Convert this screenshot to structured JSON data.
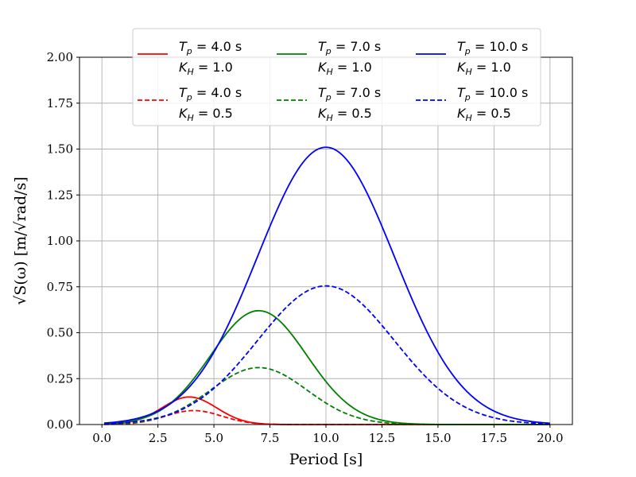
{
  "chart_data": {
    "type": "line",
    "xlabel": "Period [s]",
    "ylabel": "√S(ω)  [m/√rad/s]",
    "xlim": [
      -1.0,
      21.0
    ],
    "ylim": [
      0.0,
      2.0
    ],
    "x_ticks": [
      "0.0",
      "2.5",
      "5.0",
      "7.5",
      "10.0",
      "12.5",
      "15.0",
      "17.5",
      "20.0"
    ],
    "y_ticks": [
      "0.00",
      "0.25",
      "0.50",
      "0.75",
      "1.00",
      "1.25",
      "1.50",
      "1.75",
      "2.00"
    ],
    "grid": true,
    "legend_position": "top-center",
    "series": [
      {
        "name": "Tp = 4.0 s, KH = 1.0",
        "line1": "T_p = 4.0 s",
        "line2": "K_H = 1.0",
        "color": "#ff0000",
        "dash": "solid",
        "peak_x": 3.9,
        "peak_y": 0.15,
        "width": 1.22
      },
      {
        "name": "Tp = 4.0 s, KH = 0.5",
        "line1": "T_p = 4.0 s",
        "line2": "K_H = 0.5",
        "color": "#ff0000",
        "dash": "dashed",
        "peak_x": 4.1,
        "peak_y": 0.076,
        "width": 1.25
      },
      {
        "name": "Tp = 7.0 s, KH = 1.0",
        "line1": "T_p = 7.0 s",
        "line2": "K_H = 1.0",
        "color": "#008000",
        "dash": "solid",
        "peak_x": 7.0,
        "peak_y": 0.62,
        "width": 2.15
      },
      {
        "name": "Tp = 7.0 s, KH = 0.5",
        "line1": "T_p = 7.0 s",
        "line2": "K_H = 0.5",
        "color": "#008000",
        "dash": "dashed",
        "peak_x": 7.0,
        "peak_y": 0.31,
        "width": 2.15
      },
      {
        "name": "Tp = 10.0 s, KH = 1.0",
        "line1": "T_p = 10.0 s",
        "line2": "K_H = 1.0",
        "color": "#0000ff",
        "dash": "solid",
        "peak_x": 10.0,
        "peak_y": 1.51,
        "width": 3.05
      },
      {
        "name": "Tp = 10.0 s, KH = 0.5",
        "line1": "T_p = 10.0 s",
        "line2": "K_H = 0.5",
        "color": "#0000ff",
        "dash": "dashed",
        "peak_x": 10.0,
        "peak_y": 0.755,
        "width": 3.05
      }
    ],
    "x_range_data": [
      0.1,
      20.0
    ]
  }
}
